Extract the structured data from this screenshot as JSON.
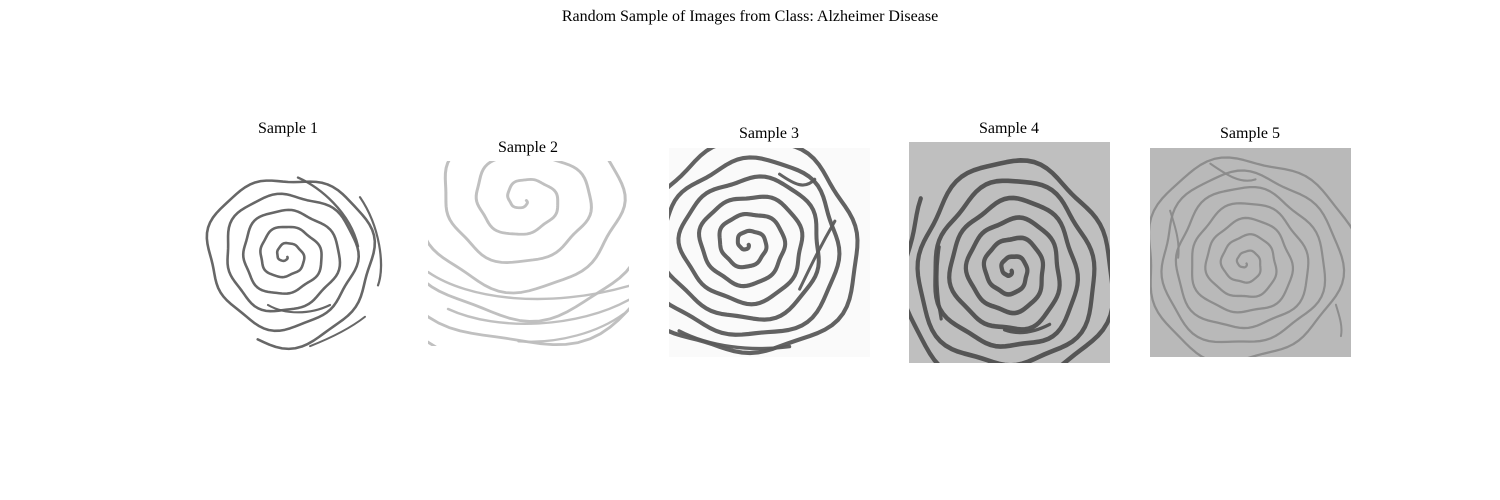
{
  "figure": {
    "title": "Random Sample of Images from Class: Alzheimer Disease"
  },
  "samples": [
    {
      "title": "Sample 1",
      "background": "#ffffff",
      "stroke": "#5f5f5f",
      "stroke_opacity": 0.95
    },
    {
      "title": "Sample 2",
      "background": "#ffffff",
      "stroke": "#bdbdbd",
      "stroke_opacity": 0.95
    },
    {
      "title": "Sample 3",
      "background": "#fafafa",
      "stroke": "#5a5a5a",
      "stroke_opacity": 0.95
    },
    {
      "title": "Sample 4",
      "background": "#bfbfbf",
      "stroke": "#4f4f4f",
      "stroke_opacity": 0.95
    },
    {
      "title": "Sample 5",
      "background": "#b9b9b9",
      "stroke": "#8a8a8a",
      "stroke_opacity": 0.95
    }
  ]
}
